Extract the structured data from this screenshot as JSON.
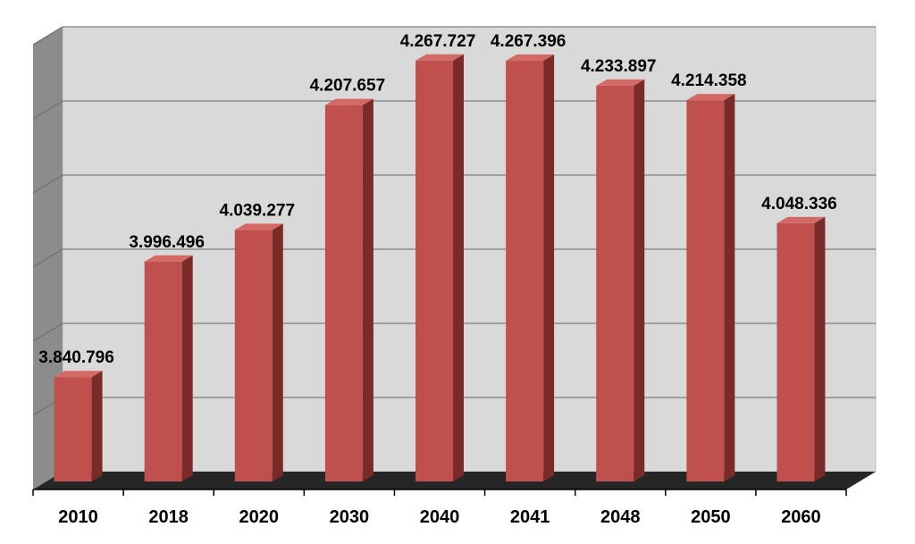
{
  "chart_data": {
    "type": "bar",
    "categories": [
      "2010",
      "2018",
      "2020",
      "2030",
      "2040",
      "2041",
      "2048",
      "2050",
      "2060"
    ],
    "values": [
      3840796,
      3996496,
      4039277,
      4207657,
      4267727,
      4267396,
      4233897,
      4214358,
      4048336
    ],
    "value_labels": [
      "3.840.796",
      "3.996.496",
      "4.039.277",
      "4.207.657",
      "4.267.727",
      "4.267.396",
      "4.233.897",
      "4.214.358",
      "4.048.336"
    ],
    "title": "",
    "xlabel": "",
    "ylabel": "",
    "ylim": [
      3700000,
      4300000
    ],
    "grid": true,
    "legend": "none",
    "colors": {
      "bar_front": "#c0504d",
      "bar_side": "#7a2b28",
      "bar_top": "#d46a66",
      "back_wall": "#d9d9d9",
      "side_wall": "#8c8c8c",
      "floor": "#262626",
      "gridline": "#7f7f7f"
    }
  }
}
